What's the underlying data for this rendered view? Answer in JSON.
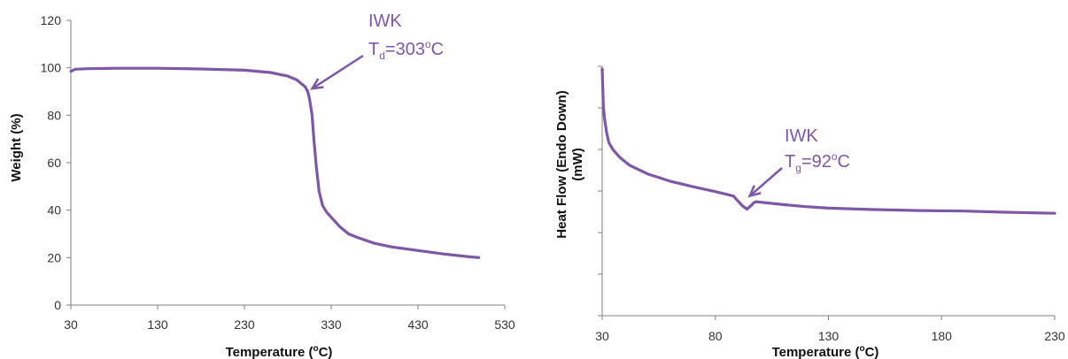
{
  "chart_data": [
    {
      "type": "line",
      "title": "",
      "xlabel_prefix": "Temperature (",
      "xlabel_sup": "o",
      "xlabel_suffix": "C)",
      "ylabel": "Weight (%)",
      "xlim": [
        30,
        530
      ],
      "ylim": [
        0,
        120
      ],
      "xticks": [
        "30",
        "130",
        "230",
        "330",
        "430",
        "530"
      ],
      "yticks": [
        "0",
        "20",
        "40",
        "60",
        "80",
        "100",
        "120"
      ],
      "grid": false,
      "series": [
        {
          "x": [
            30,
            35,
            50,
            80,
            130,
            180,
            230,
            260,
            280,
            290,
            295,
            300,
            303,
            305,
            308,
            310,
            313,
            316,
            320,
            325,
            330,
            340,
            350,
            360,
            380,
            400,
            430,
            460,
            490,
            500
          ],
          "values": [
            98.5,
            99.4,
            99.6,
            99.8,
            99.8,
            99.5,
            99.0,
            98.0,
            96.5,
            95.0,
            93.5,
            92.0,
            90.0,
            87.0,
            80.0,
            70.0,
            58.0,
            48.0,
            42.0,
            39.0,
            37.0,
            33.0,
            30.0,
            28.5,
            26.0,
            24.5,
            23.0,
            21.5,
            20.3,
            20.0
          ]
        }
      ],
      "annotation": {
        "label": "IWK",
        "value_main": "T",
        "value_sub": "d",
        "value_text": "=303",
        "value_sup": "o",
        "value_unit": "C",
        "target_x": 303,
        "target_y": 92
      }
    },
    {
      "type": "line",
      "title": "",
      "xlabel_prefix": "Temperature (",
      "xlabel_sup": "o",
      "xlabel_suffix": "C)",
      "ylabel_line1": "Heat Flow (Endo Down)",
      "ylabel_line2": "(mW)",
      "xlim": [
        30,
        230
      ],
      "xticks": [
        "30",
        "80",
        "130",
        "180",
        "230"
      ],
      "grid": false,
      "series": [
        {
          "x": [
            30,
            30.5,
            31,
            32,
            33,
            35,
            38,
            42,
            50,
            60,
            70,
            80,
            88,
            90,
            92,
            94,
            96,
            97,
            98,
            100,
            110,
            120,
            130,
            150,
            170,
            190,
            210,
            230
          ],
          "values": [
            100,
            85,
            80,
            74,
            70,
            67,
            64,
            61,
            57.5,
            54.5,
            52.3,
            50.3,
            48.5,
            46.5,
            44.5,
            43.2,
            44.8,
            45.8,
            46.2,
            46.0,
            45.0,
            44.2,
            43.6,
            43.0,
            42.6,
            42.4,
            41.9,
            41.5
          ]
        }
      ],
      "annotation": {
        "label": "IWK",
        "value_main": "T",
        "value_sub": "g",
        "value_text": "=92",
        "value_sup": "o",
        "value_unit": "C",
        "target_x": 96,
        "target_y": 46
      }
    }
  ],
  "colors": {
    "series": "#7e57a6",
    "axis": "#808080",
    "annotation": "#7e57a6"
  }
}
